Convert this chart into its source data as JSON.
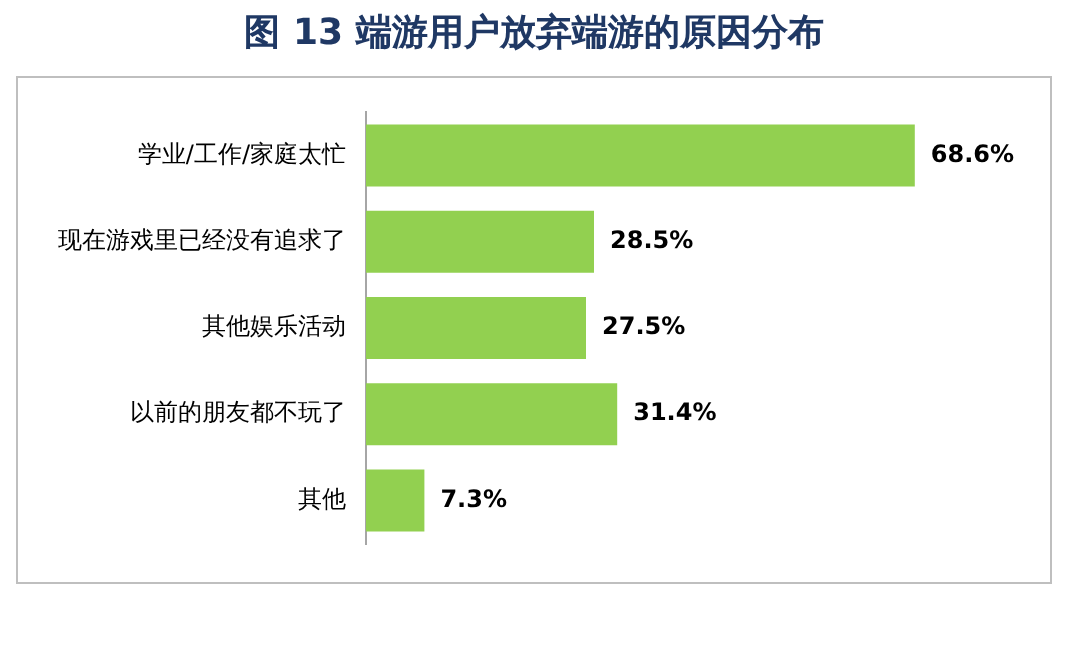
{
  "chart_data": {
    "type": "bar",
    "title": "图 13  端游用户放弃端游的原因分布",
    "orientation": "horizontal",
    "categories": [
      "学业/工作/家庭太忙",
      "现在游戏里已经没有追求了",
      "其他娱乐活动",
      "以前的朋友都不玩了",
      "其他"
    ],
    "values": [
      68.6,
      28.5,
      27.5,
      31.4,
      7.3
    ],
    "value_labels": [
      "68.6%",
      "28.5%",
      "27.5%",
      "31.4%",
      "7.3%"
    ],
    "color": "#92d050",
    "tick_labels": "y",
    "grid": false,
    "legend": false
  }
}
